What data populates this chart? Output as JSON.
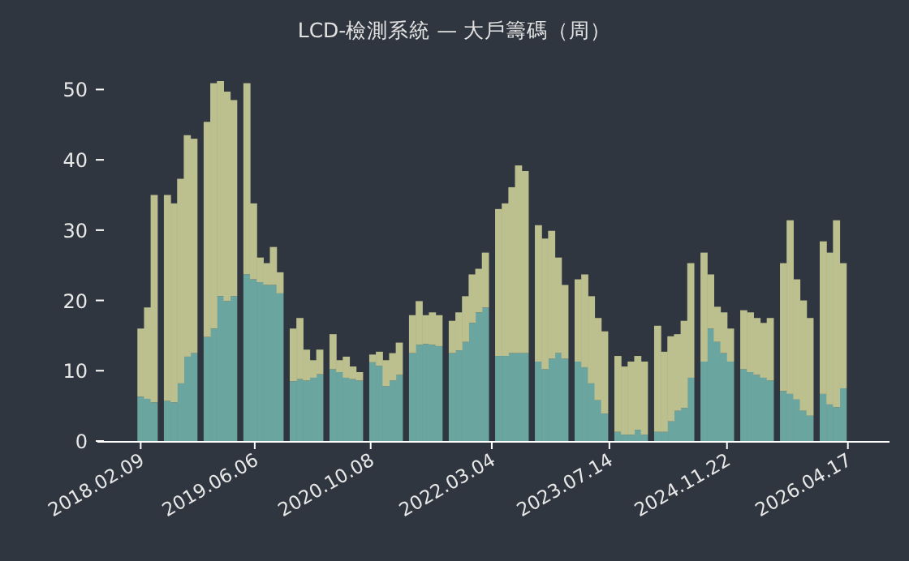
{
  "chart_data": {
    "type": "bar",
    "title": "LCD-檢測系統 — 大戶籌碼（周）",
    "stacked": true,
    "x": [
      "2018-02-09",
      "2018-03-09",
      "2018-04-06",
      "2018-05-04",
      "2018-06-01",
      "2018-06-29",
      "2018-07-27",
      "2018-08-24",
      "2018-09-21",
      "2018-10-19",
      "2018-11-16",
      "2018-12-14",
      "2019-01-11",
      "2019-02-08",
      "2019-03-08",
      "2019-04-05",
      "2019-05-03",
      "2019-05-31",
      "2019-06-28",
      "2019-07-26",
      "2019-08-23",
      "2019-09-20",
      "2019-10-18",
      "2019-11-15",
      "2019-12-13",
      "2020-01-10",
      "2020-02-07",
      "2020-03-06",
      "2020-04-03",
      "2020-05-01",
      "2020-05-29",
      "2020-06-26",
      "2020-07-24",
      "2020-08-21",
      "2020-09-18",
      "2020-10-16",
      "2020-11-13",
      "2020-12-11",
      "2021-01-08",
      "2021-02-05",
      "2021-03-05",
      "2021-04-02",
      "2021-04-30",
      "2021-05-28",
      "2021-06-25",
      "2021-07-23",
      "2021-08-20",
      "2021-09-17",
      "2021-10-15",
      "2021-11-12",
      "2021-12-10",
      "2022-01-07",
      "2022-02-04",
      "2022-03-04",
      "2022-04-01",
      "2022-04-29",
      "2022-05-27",
      "2022-06-24",
      "2022-07-22",
      "2022-08-19",
      "2022-09-16",
      "2022-10-14",
      "2022-11-11",
      "2022-12-09",
      "2023-01-06",
      "2023-02-03",
      "2023-03-03",
      "2023-03-31",
      "2023-04-28",
      "2023-05-26",
      "2023-06-23",
      "2023-07-21",
      "2023-08-18",
      "2023-09-15",
      "2023-10-13",
      "2023-11-10",
      "2023-12-08",
      "2024-01-05",
      "2024-02-02",
      "2024-03-01",
      "2024-03-29",
      "2024-04-26",
      "2024-05-24",
      "2024-06-21",
      "2024-07-19",
      "2024-08-16",
      "2024-09-13",
      "2024-10-11",
      "2024-11-08",
      "2024-12-06",
      "2025-01-03",
      "2025-01-31",
      "2025-02-28",
      "2025-03-28",
      "2025-04-25",
      "2025-05-23",
      "2025-06-20",
      "2025-07-18",
      "2025-08-15",
      "2025-09-12",
      "2025-10-10",
      "2025-11-07",
      "2025-12-05",
      "2026-01-02",
      "2026-01-30",
      "2026-02-27",
      "2026-03-27"
    ],
    "series": [
      {
        "color": "#6aa5a0",
        "values": [
          6.3,
          6,
          5.5,
          null,
          5.7,
          5.5,
          8.2,
          12,
          12.5,
          null,
          14.8,
          16,
          20.6,
          19.9,
          20.6,
          null,
          23.7,
          23,
          22.6,
          22.2,
          22.2,
          21,
          null,
          8.5,
          8.8,
          8.6,
          9,
          9.5,
          null,
          10.2,
          9.8,
          9,
          8.8,
          8.6,
          null,
          11.2,
          10.7,
          7.8,
          8.6,
          9.4,
          null,
          12.5,
          13.7,
          13.8,
          13.7,
          13.5,
          null,
          12.5,
          12.9,
          14.1,
          16.8,
          18.3,
          19,
          null,
          12.1,
          12.1,
          12.5,
          12.5,
          12.5,
          null,
          11.3,
          10.2,
          11.7,
          12.5,
          11.7,
          null,
          11.3,
          10.5,
          8.2,
          5.8,
          3.9,
          null,
          1.3,
          0.9,
          0.9,
          1.6,
          0.9,
          null,
          1.3,
          1.3,
          2.8,
          4.3,
          4.7,
          9,
          null,
          11.3,
          16,
          14.1,
          12.5,
          11.3,
          null,
          10.2,
          9.8,
          9.4,
          9,
          8.6,
          null,
          7.1,
          6.7,
          5.9,
          4.3,
          3.6,
          null,
          6.7,
          5.2,
          4.8,
          7.5
        ]
      },
      {
        "color": "#bcbf8e",
        "values": [
          9.7,
          13,
          29.5,
          null,
          29.3,
          28.3,
          29.1,
          31.5,
          30.5,
          null,
          30.6,
          34.9,
          30.6,
          29.8,
          27.9,
          null,
          27.2,
          10.8,
          3.5,
          3.1,
          5.4,
          3,
          null,
          7.5,
          8.7,
          4.4,
          2.5,
          3.5,
          null,
          5,
          1.7,
          3,
          1.8,
          1.2,
          null,
          1.1,
          2,
          3.7,
          3.9,
          4.6,
          null,
          5.4,
          6.2,
          4.1,
          4.6,
          4.4,
          null,
          4.6,
          5.4,
          6.5,
          6.9,
          6.2,
          7.8,
          null,
          20.9,
          21.7,
          23.6,
          26.7,
          25.9,
          null,
          19.4,
          18.6,
          18.2,
          13.6,
          10.5,
          null,
          11.7,
          13.2,
          12.4,
          11.7,
          11.7,
          null,
          10.8,
          9.7,
          10.4,
          10.5,
          10.4,
          null,
          15.1,
          11.4,
          12.1,
          10.9,
          12.4,
          16.3,
          null,
          15.5,
          7.7,
          5,
          5.8,
          4.7,
          null,
          8.4,
          8.5,
          8.1,
          7.8,
          8.9,
          null,
          18.2,
          24.7,
          17.1,
          15.7,
          13.9,
          null,
          21.7,
          21.6,
          26.6,
          17.8
        ]
      }
    ],
    "ylim": [
      0,
      51.2
    ],
    "yticks": [
      0,
      10,
      20,
      30,
      40,
      50
    ],
    "xlim": [
      "2017-08-10",
      "2026-10-10"
    ],
    "xticks": [
      {
        "value": "2018-02-09",
        "label": "2018.02.09"
      },
      {
        "value": "2019-06-06",
        "label": "2019.06.06"
      },
      {
        "value": "2020-10-08",
        "label": "2020.10.08"
      },
      {
        "value": "2022-03-04",
        "label": "2022.03.04"
      },
      {
        "value": "2023-07-14",
        "label": "2023.07.14"
      },
      {
        "value": "2024-11-22",
        "label": "2024.11.22"
      },
      {
        "value": "2026-04-17",
        "label": "2026.04.17"
      }
    ]
  }
}
